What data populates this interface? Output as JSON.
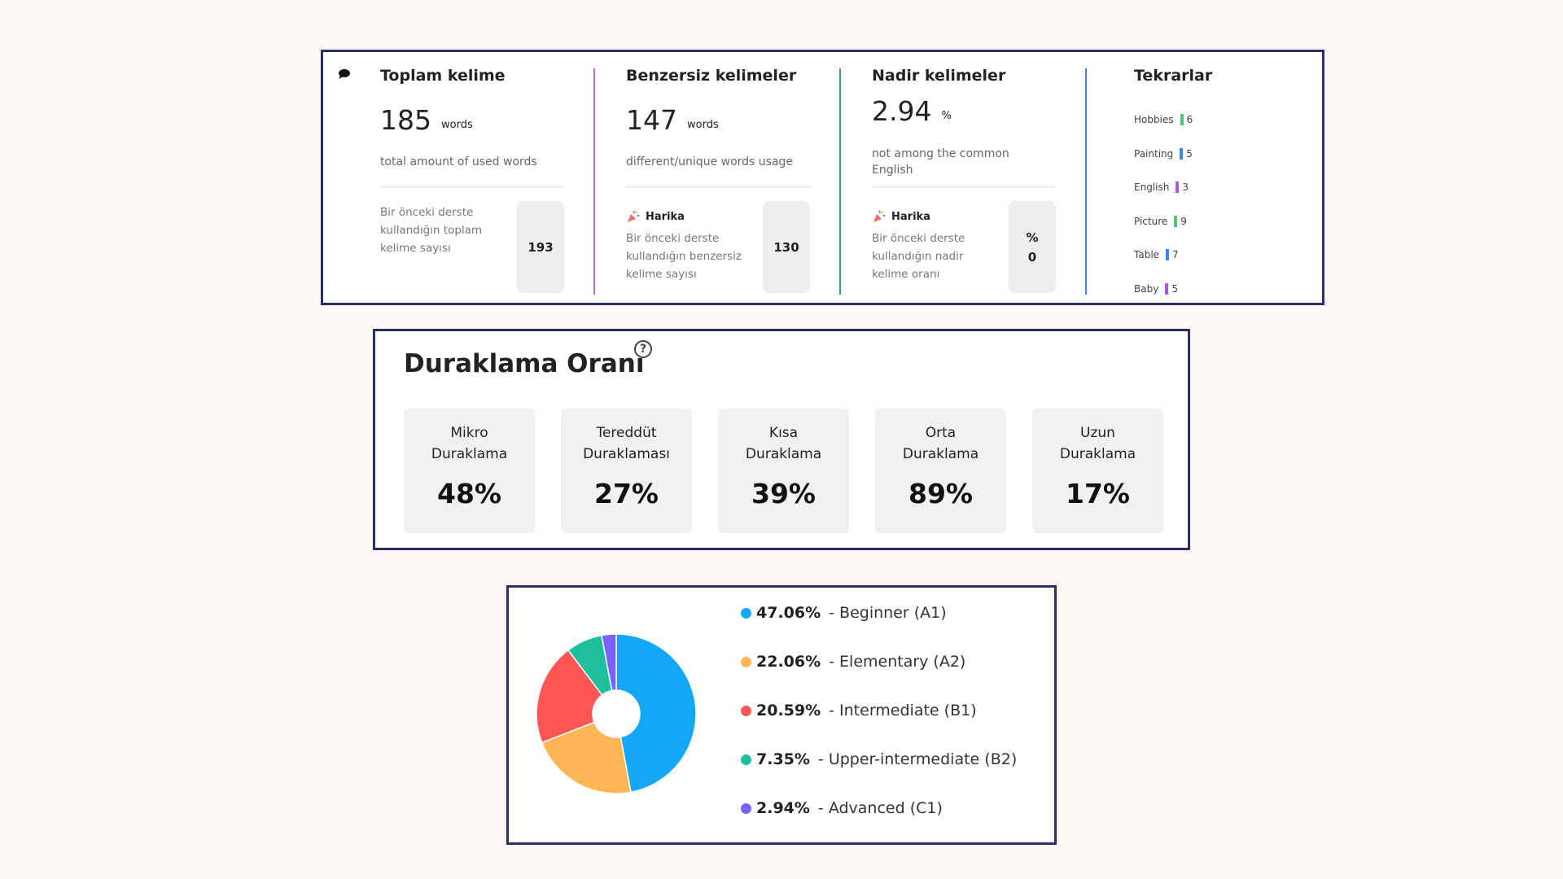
{
  "stats": {
    "total": {
      "title": "Toplam kelime",
      "value": "185",
      "unit": "words",
      "desc": "total amount of used words",
      "prev_label": "Bir önceki derste kullandığın toplam kelime sayısı",
      "prev_value": "193"
    },
    "unique": {
      "title": "Benzersiz kelimeler",
      "value": "147",
      "unit": "words",
      "desc": "different/unique words usage",
      "badge": "Harika",
      "prev_label": "Bir önceki derste kullandığın benzersiz kelime sayısı",
      "prev_value": "130"
    },
    "rare": {
      "title": "Nadir kelimeler",
      "value": "2.94",
      "unit": "%",
      "desc": "not among the common English",
      "badge": "Harika",
      "prev_label": "Bir önceki derste kullandığın nadir kelime oranı",
      "prev_percent": "%",
      "prev_value": "0"
    },
    "repeats": {
      "title": "Tekrarlar",
      "items": [
        {
          "word": "Hobbies",
          "count": "6",
          "color": "#4fc37a"
        },
        {
          "word": "Painting",
          "count": "5",
          "color": "#3b82f6"
        },
        {
          "word": "English",
          "count": "3",
          "color": "#a855f7"
        },
        {
          "word": "Picture",
          "count": "9",
          "color": "#4fc37a"
        },
        {
          "word": "Table",
          "count": "7",
          "color": "#3b82f6"
        },
        {
          "word": "Baby",
          "count": "5",
          "color": "#a855f7"
        }
      ]
    }
  },
  "pause": {
    "title": "Duraklama Oranı",
    "help": "?",
    "cards": [
      {
        "label1": "Mikro",
        "label2": "Duraklama",
        "value": "48%"
      },
      {
        "label1": "Tereddüt",
        "label2": "Duraklaması",
        "value": "27%"
      },
      {
        "label1": "Kısa",
        "label2": "Duraklama",
        "value": "39%"
      },
      {
        "label1": "Orta",
        "label2": "Duraklama",
        "value": "89%"
      },
      {
        "label1": "Uzun",
        "label2": "Duraklama",
        "value": "17%"
      }
    ]
  },
  "chart_data": {
    "type": "pie",
    "style": "donut",
    "categories": [
      "Beginner (A1)",
      "Elementary (A2)",
      "Intermediate (B1)",
      "Upper-intermediate (B2)",
      "Advanced (C1)"
    ],
    "values": [
      47.06,
      22.06,
      20.59,
      7.35,
      2.94
    ],
    "labels": [
      "47.06%",
      "22.06%",
      "20.59%",
      "7.35%",
      "2.94%"
    ],
    "colors": [
      "#12a8f7",
      "#feb553",
      "#fe5555",
      "#1dbf9d",
      "#7b61ff"
    ],
    "legend_placement": "right"
  }
}
